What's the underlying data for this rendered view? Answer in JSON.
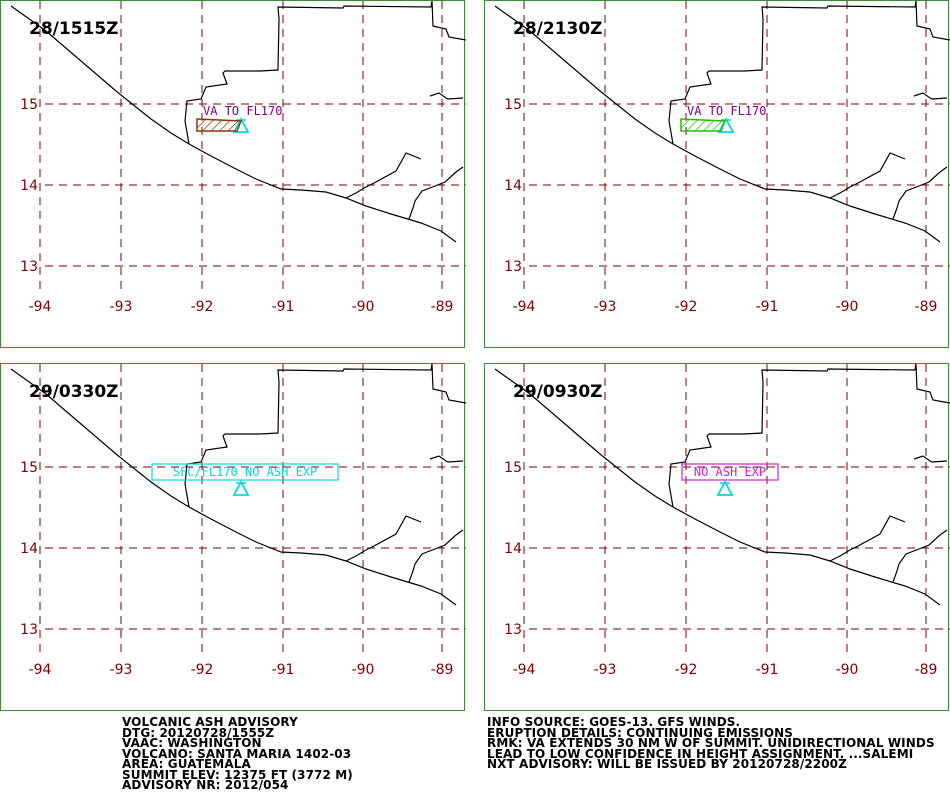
{
  "panels": [
    {
      "time": "28/1515Z",
      "label": "VA TO FL170",
      "labelColor": "#800080",
      "polyColor": "#8b3a00",
      "type": "polygon"
    },
    {
      "time": "28/2130Z",
      "label": "VA TO FL170",
      "labelColor": "#800080",
      "polyColor": "#22c000",
      "type": "polygon"
    },
    {
      "time": "29/0330Z",
      "label": "SFC/FL170 NO ASH EXP",
      "labelColor": "#00d8e0",
      "type": "box"
    },
    {
      "time": "29/0930Z",
      "label": "NO ASH EXP",
      "labelColor": "#d020d0",
      "type": "box"
    }
  ],
  "axes": {
    "lat_ticks": [
      "15",
      "14",
      "13"
    ],
    "lon_ticks": [
      "-94",
      "-93",
      "-92",
      "-91",
      "-90",
      "-89"
    ]
  },
  "colors": {
    "grid": "#800000",
    "tick_label": "#800000",
    "coast": "#000000",
    "panel_border": "#3a8a3a",
    "volcano": "#00d8e0"
  },
  "volcano_icon": "triangle-icon",
  "advisory_left": [
    "VOLCANIC ASH ADVISORY",
    "DTG: 20120728/1555Z",
    "VAAC: WASHINGTON",
    "VOLCANO: SANTA MARIA 1402-03",
    "AREA: GUATEMALA",
    "SUMMIT ELEV: 12375 FT (3772 M)",
    "ADVISORY NR: 2012/054"
  ],
  "advisory_right": [
    "INFO SOURCE: GOES-13. GFS WINDS.",
    "ERUPTION DETAILS: CONTINUING EMISSIONS",
    "RMK: VA EXTENDS 30 NM W OF SUMMIT. UNIDIRECTIONAL WINDS",
    "LEAD TO LOW CONFIDENCE IN HEIGHT ASSIGNMENT. ...SALEMI",
    "NXT ADVISORY: WILL BE ISSUED BY 20120728/2200Z"
  ]
}
